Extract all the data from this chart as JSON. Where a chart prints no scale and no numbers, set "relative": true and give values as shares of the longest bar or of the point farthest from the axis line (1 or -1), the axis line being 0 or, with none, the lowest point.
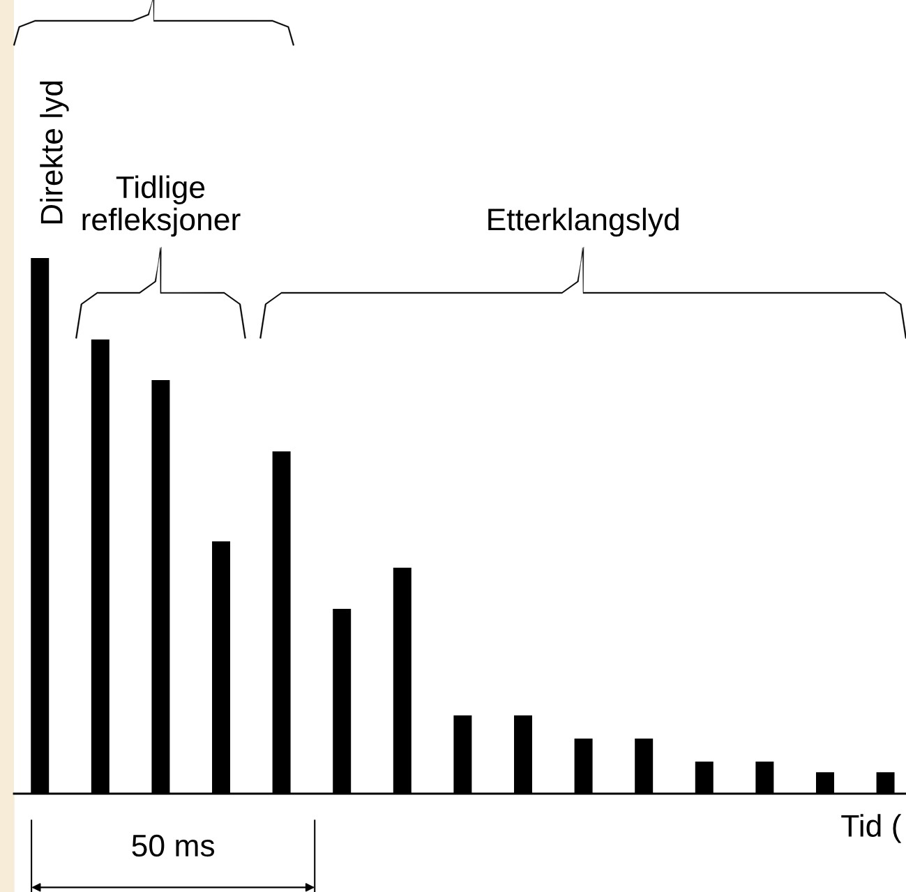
{
  "chart_data": {
    "type": "bar",
    "relative": true,
    "xlabel": "Tid (",
    "categories": [
      null,
      null,
      null,
      null,
      null,
      null,
      null,
      null,
      null,
      null,
      null,
      null,
      null,
      null,
      null
    ],
    "values": [
      1,
      0.848,
      0.772,
      0.471,
      0.639,
      0.345,
      0.422,
      0.146,
      0.146,
      0.103,
      0.103,
      0.06,
      0.06,
      0.04,
      0.04
    ],
    "color": "#000000",
    "annotations": [
      "Direkte lyd",
      "Tidlige\nrefleksjoner",
      "Etterklangslyd",
      "50 ms"
    ],
    "grid": false
  }
}
